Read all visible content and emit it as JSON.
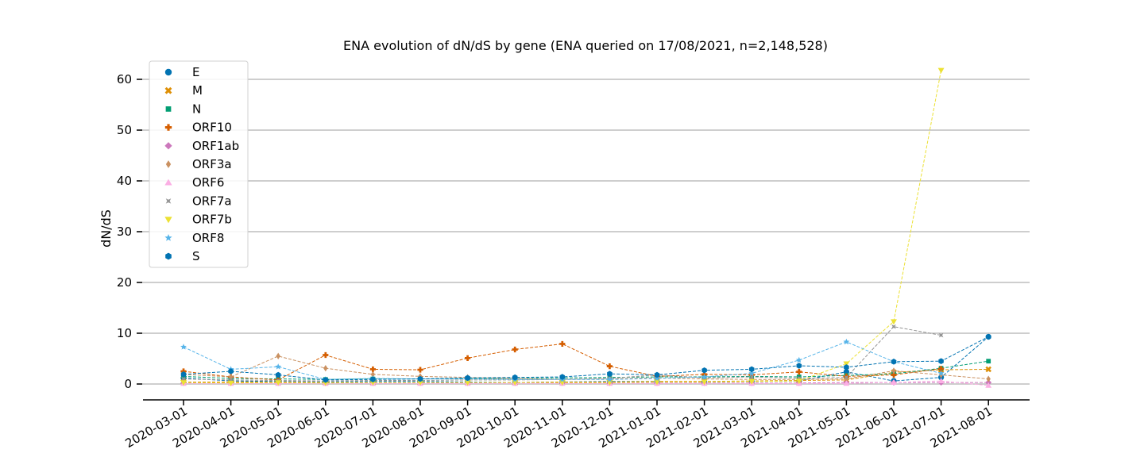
{
  "chart_data": {
    "type": "line",
    "title": "ENA evolution of dN/dS by gene (ENA queried on 17/08/2021, n=2,148,528)",
    "xlabel": "",
    "ylabel": "dN/dS",
    "ylim": [
      -3,
      63
    ],
    "yticks": [
      0,
      10,
      20,
      30,
      40,
      50,
      60
    ],
    "grid": "horizontal",
    "legend_position": "top-left",
    "x": [
      "2020-03-01",
      "2020-04-01",
      "2020-05-01",
      "2020-06-01",
      "2020-07-01",
      "2020-08-01",
      "2020-09-01",
      "2020-10-01",
      "2020-11-01",
      "2020-12-01",
      "2021-01-01",
      "2021-02-01",
      "2021-03-01",
      "2021-04-01",
      "2021-05-01",
      "2021-06-01",
      "2021-07-01",
      "2021-08-01"
    ],
    "series": [
      {
        "name": "E",
        "color": "#0173b2",
        "marker": "circle",
        "values": [
          1.2,
          0.6,
          0.5,
          0.4,
          0.5,
          0.5,
          0.4,
          0.3,
          0.4,
          0.5,
          0.5,
          0.4,
          0.5,
          0.6,
          2.4,
          0.6,
          1.3,
          9.3
        ]
      },
      {
        "name": "M",
        "color": "#de8f05",
        "marker": "x",
        "values": [
          0.4,
          0.4,
          0.4,
          0.3,
          0.3,
          0.3,
          0.3,
          0.3,
          0.4,
          0.4,
          0.5,
          0.5,
          0.6,
          0.7,
          0.8,
          2.3,
          2.8,
          2.9
        ]
      },
      {
        "name": "N",
        "color": "#029e73",
        "marker": "square",
        "values": [
          1.5,
          1.1,
          1.0,
          0.9,
          1.0,
          1.0,
          1.1,
          1.1,
          1.2,
          1.3,
          1.4,
          1.4,
          1.5,
          1.4,
          1.7,
          2.0,
          3.1,
          4.5
        ]
      },
      {
        "name": "ORF10",
        "color": "#d55e00",
        "marker": "plus",
        "values": [
          2.5,
          1.4,
          0.8,
          5.7,
          2.9,
          2.8,
          5.1,
          6.8,
          7.9,
          3.5,
          1.5,
          1.9,
          1.8,
          2.4,
          1.5,
          1.8,
          3.0,
          null
        ]
      },
      {
        "name": "ORF1ab",
        "color": "#cc78bc",
        "marker": "diamond",
        "values": [
          0.2,
          0.2,
          0.2,
          0.2,
          0.2,
          0.2,
          0.2,
          0.2,
          0.2,
          0.2,
          0.2,
          0.2,
          0.2,
          0.2,
          0.3,
          0.3,
          0.3,
          0.3
        ]
      },
      {
        "name": "ORF3a",
        "color": "#ca9161",
        "marker": "thin-diamond",
        "values": [
          1.9,
          1.4,
          5.5,
          3.1,
          1.9,
          1.5,
          1.3,
          1.1,
          0.9,
          1.0,
          1.2,
          1.0,
          0.9,
          0.9,
          1.0,
          2.6,
          1.8,
          1.0
        ]
      },
      {
        "name": "ORF6",
        "color": "#fbafe4",
        "marker": "triangle-up",
        "values": [
          0.1,
          0.1,
          0.1,
          0.1,
          0.1,
          0.1,
          0.1,
          0.1,
          0.1,
          0.1,
          0.1,
          0.1,
          0.1,
          0.1,
          0.1,
          0.3,
          0.6,
          -0.3
        ]
      },
      {
        "name": "ORF7a",
        "color": "#949494",
        "marker": "star4",
        "values": [
          1.0,
          0.8,
          0.7,
          0.6,
          0.7,
          0.7,
          0.8,
          0.8,
          0.9,
          1.1,
          1.8,
          1.2,
          1.4,
          1.1,
          1.3,
          11.3,
          9.6,
          null
        ]
      },
      {
        "name": "ORF7b",
        "color": "#ece133",
        "marker": "triangle-down",
        "values": [
          0.3,
          0.2,
          0.3,
          0.2,
          0.3,
          0.3,
          0.3,
          0.3,
          0.3,
          0.3,
          0.4,
          0.4,
          0.5,
          0.6,
          4.0,
          12.3,
          61.8,
          null
        ]
      },
      {
        "name": "ORF8",
        "color": "#56b4e9",
        "marker": "star",
        "values": [
          7.3,
          2.9,
          3.4,
          0.9,
          1.1,
          1.0,
          1.0,
          0.9,
          0.9,
          0.9,
          1.1,
          1.4,
          2.1,
          4.7,
          8.3,
          4.4,
          2.1,
          null
        ]
      },
      {
        "name": "S",
        "color": "#0173b2",
        "marker": "hexagon",
        "values": [
          1.9,
          2.5,
          1.8,
          0.8,
          0.9,
          1.0,
          1.2,
          1.3,
          1.4,
          2.0,
          1.8,
          2.7,
          2.9,
          3.6,
          3.3,
          4.4,
          4.5,
          9.3
        ]
      }
    ]
  }
}
